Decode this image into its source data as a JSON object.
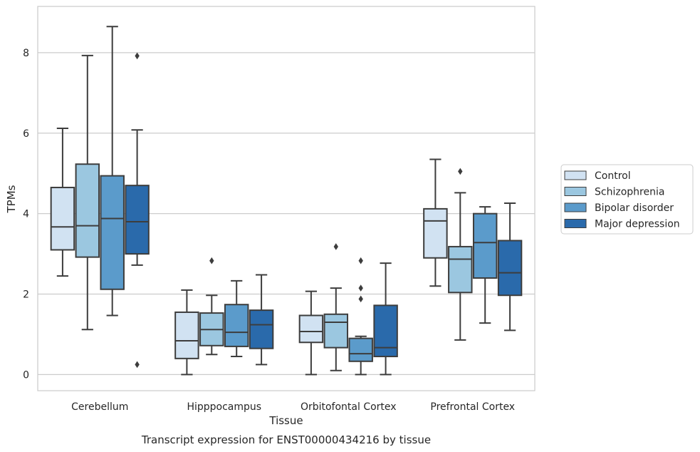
{
  "caption": "Transcript expression for ENST00000434216 by tissue",
  "chart_data": {
    "type": "box",
    "xlabel": "Tissue",
    "ylabel": "TPMs",
    "ylim": [
      -0.4,
      9.15
    ],
    "yticks": [
      0,
      2,
      4,
      6,
      8
    ],
    "grid": "horizontal",
    "legend_position": "right",
    "categories": [
      "Cerebellum",
      "Hipppocampus",
      "Orbitofontal Cortex",
      "Prefrontal Cortex"
    ],
    "series": [
      {
        "name": "Control",
        "color": "#d1e2f2",
        "boxes": [
          {
            "whisker_low": 2.45,
            "q1": 3.1,
            "median": 3.67,
            "q3": 4.65,
            "whisker_high": 6.12,
            "outliers": []
          },
          {
            "whisker_low": 0.0,
            "q1": 0.4,
            "median": 0.84,
            "q3": 1.55,
            "whisker_high": 2.1,
            "outliers": []
          },
          {
            "whisker_low": 0.0,
            "q1": 0.8,
            "median": 1.07,
            "q3": 1.47,
            "whisker_high": 2.07,
            "outliers": []
          },
          {
            "whisker_low": 2.2,
            "q1": 2.9,
            "median": 3.82,
            "q3": 4.12,
            "whisker_high": 5.35,
            "outliers": []
          }
        ]
      },
      {
        "name": "Schizophrenia",
        "color": "#9bc7e0",
        "boxes": [
          {
            "whisker_low": 1.12,
            "q1": 2.92,
            "median": 3.7,
            "q3": 5.23,
            "whisker_high": 7.93,
            "outliers": []
          },
          {
            "whisker_low": 0.5,
            "q1": 0.72,
            "median": 1.12,
            "q3": 1.53,
            "whisker_high": 1.97,
            "outliers": [
              2.83
            ]
          },
          {
            "whisker_low": 0.1,
            "q1": 0.67,
            "median": 1.3,
            "q3": 1.5,
            "whisker_high": 2.15,
            "outliers": [
              3.18
            ]
          },
          {
            "whisker_low": 0.86,
            "q1": 2.04,
            "median": 2.87,
            "q3": 3.18,
            "whisker_high": 4.52,
            "outliers": [
              5.05
            ]
          }
        ]
      },
      {
        "name": "Bipolar disorder",
        "color": "#5b9bcb",
        "boxes": [
          {
            "whisker_low": 1.47,
            "q1": 2.12,
            "median": 3.88,
            "q3": 4.94,
            "whisker_high": 8.65,
            "outliers": []
          },
          {
            "whisker_low": 0.45,
            "q1": 0.7,
            "median": 1.05,
            "q3": 1.74,
            "whisker_high": 2.33,
            "outliers": []
          },
          {
            "whisker_low": 0.0,
            "q1": 0.33,
            "median": 0.52,
            "q3": 0.9,
            "whisker_high": 0.95,
            "outliers": [
              2.83,
              2.15,
              1.88
            ]
          },
          {
            "whisker_low": 1.28,
            "q1": 2.4,
            "median": 3.28,
            "q3": 4.0,
            "whisker_high": 4.17,
            "outliers": []
          }
        ]
      },
      {
        "name": "Major depression",
        "color": "#2a6aab",
        "boxes": [
          {
            "whisker_low": 2.72,
            "q1": 3.0,
            "median": 3.8,
            "q3": 4.7,
            "whisker_high": 6.08,
            "outliers": [
              7.92,
              0.25
            ]
          },
          {
            "whisker_low": 0.25,
            "q1": 0.65,
            "median": 1.24,
            "q3": 1.6,
            "whisker_high": 2.48,
            "outliers": []
          },
          {
            "whisker_low": 0.0,
            "q1": 0.45,
            "median": 0.67,
            "q3": 1.72,
            "whisker_high": 2.77,
            "outliers": []
          },
          {
            "whisker_low": 1.1,
            "q1": 1.97,
            "median": 2.53,
            "q3": 3.33,
            "whisker_high": 4.26,
            "outliers": []
          }
        ]
      }
    ]
  }
}
